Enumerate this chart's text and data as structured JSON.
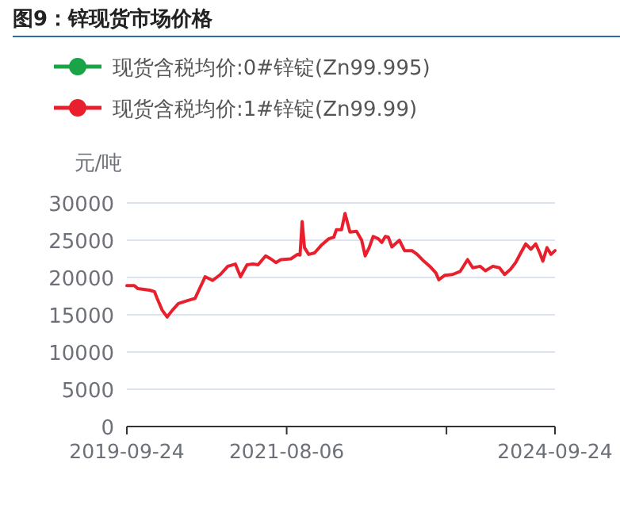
{
  "chart_data": {
    "type": "line",
    "title": "图9：锌现货市场价格",
    "ylabel": "元/吨",
    "x": [
      "2019-09-24",
      "2019-10-26",
      "2019-11-10",
      "2019-12-30",
      "2020-01-20",
      "2020-01-31",
      "2020-02-22",
      "2020-03-14",
      "2020-04-05",
      "2020-05-01",
      "2020-06-09",
      "2020-07-11",
      "2020-08-23",
      "2020-09-24",
      "2020-10-27",
      "2020-11-28",
      "2020-12-30",
      "2021-01-21",
      "2021-02-18",
      "2021-03-16",
      "2021-04-06",
      "2021-05-08",
      "2021-05-30",
      "2021-06-21",
      "2021-07-12",
      "2021-08-24",
      "2021-09-21",
      "2021-10-02",
      "2021-10-11",
      "2021-10-21",
      "2021-11-08",
      "2021-12-03",
      "2021-12-31",
      "2022-02-02",
      "2022-02-23",
      "2022-03-06",
      "2022-03-28",
      "2022-04-12",
      "2022-05-03",
      "2022-05-31",
      "2022-06-22",
      "2022-07-07",
      "2022-07-24",
      "2022-08-10",
      "2022-09-01",
      "2022-09-16",
      "2022-10-01",
      "2022-10-14",
      "2022-10-29",
      "2022-11-30",
      "2022-12-22",
      "2023-01-23",
      "2023-02-14",
      "2023-03-14",
      "2023-04-09",
      "2023-05-05",
      "2023-05-17",
      "2023-06-12",
      "2023-07-15",
      "2023-08-16",
      "2023-09-17",
      "2023-10-09",
      "2023-11-10",
      "2023-12-02",
      "2024-01-03",
      "2024-01-31",
      "2024-02-22",
      "2024-03-18",
      "2024-04-09",
      "2024-05-01",
      "2024-05-22",
      "2024-06-13",
      "2024-07-04",
      "2024-07-21",
      "2024-08-03",
      "2024-08-21",
      "2024-09-07",
      "2024-09-24"
    ],
    "series": [
      {
        "name": "现货含税均价:0#锌锭(Zn99.995)",
        "color": "#1aa448",
        "values": [
          null,
          null,
          null,
          null,
          null,
          null,
          null,
          null,
          null,
          null,
          null,
          null,
          null,
          null,
          null,
          null,
          null,
          null,
          null,
          null,
          null,
          null,
          null,
          null,
          null,
          null,
          null,
          null,
          null,
          null,
          null,
          null,
          null,
          null,
          null,
          null,
          null,
          null,
          null,
          null,
          null,
          null,
          null,
          null,
          null,
          null,
          null,
          null,
          null,
          null,
          null,
          null,
          null,
          null,
          null,
          null,
          null,
          null,
          null,
          null,
          null,
          null,
          null,
          null,
          null,
          null,
          null,
          null,
          null,
          null,
          null,
          null,
          null,
          null,
          null,
          null,
          null,
          null
        ]
      },
      {
        "name": "现货含税均价:1#锌锭(Zn99.99)",
        "color": "#e8202e",
        "values": [
          18900,
          18900,
          18500,
          18300,
          18100,
          17200,
          15600,
          14700,
          15600,
          16500,
          16900,
          17200,
          20100,
          19600,
          20400,
          21500,
          21800,
          20100,
          21700,
          21800,
          21700,
          22900,
          22500,
          22000,
          22400,
          22500,
          23100,
          23000,
          27500,
          24000,
          23100,
          23300,
          24300,
          25200,
          25400,
          26400,
          26400,
          28600,
          26100,
          26200,
          25000,
          22900,
          24000,
          25500,
          25200,
          24700,
          25500,
          25400,
          24100,
          25000,
          23600,
          23600,
          23100,
          22200,
          21500,
          20600,
          19700,
          20300,
          20400,
          20800,
          22400,
          21300,
          21500,
          20900,
          21500,
          21300,
          20400,
          21100,
          22000,
          23300,
          24500,
          23800,
          24500,
          23300,
          22200,
          24000,
          23100,
          23600
        ]
      }
    ],
    "xlim": [
      "2019-09-24",
      "2024-09-24"
    ],
    "xticks": [
      {
        "value": "2019-09-24",
        "label": "2019-09-24"
      },
      {
        "value": "2021-08-06",
        "label": "2021-08-06"
      },
      {
        "value": "2023-06-19",
        "label": null
      },
      {
        "value": "2024-09-24",
        "label": "2024-09-24"
      }
    ],
    "ylim": [
      0,
      30000
    ],
    "yticks": [
      0,
      5000,
      10000,
      15000,
      20000,
      25000,
      30000
    ],
    "grid": "y",
    "legend": "top",
    "marker": "none",
    "line_style": "solid"
  }
}
